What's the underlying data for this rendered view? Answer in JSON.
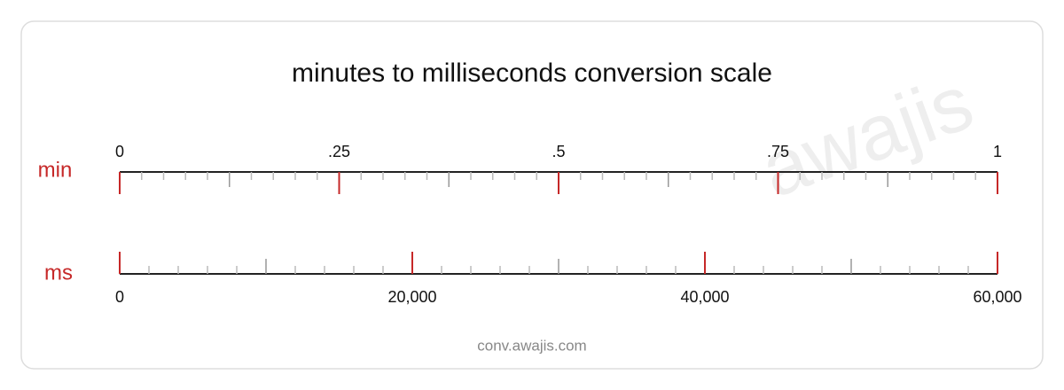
{
  "title": "minutes to milliseconds conversion scale",
  "footer": "conv.awajis.com",
  "watermark": "awajis",
  "scales": [
    {
      "unit": "min",
      "lim": [
        0,
        1
      ],
      "ticks": [
        0,
        {
          "value": 0.25,
          "label": ".25"
        },
        {
          "value": 0.5,
          "label": ".5"
        },
        {
          "value": 0.75,
          "label": ".75"
        },
        1
      ],
      "medium_step": 0.125,
      "minor_step": 0.025
    },
    {
      "unit": "ms",
      "lim": [
        0,
        60000
      ],
      "ticks": [
        0,
        {
          "value": 20000,
          "label": "20,000"
        },
        {
          "value": 40000,
          "label": "40,000"
        },
        {
          "value": 60000,
          "label": "60,000"
        }
      ],
      "medium_step": 10000,
      "minor_step": 2000
    }
  ]
}
